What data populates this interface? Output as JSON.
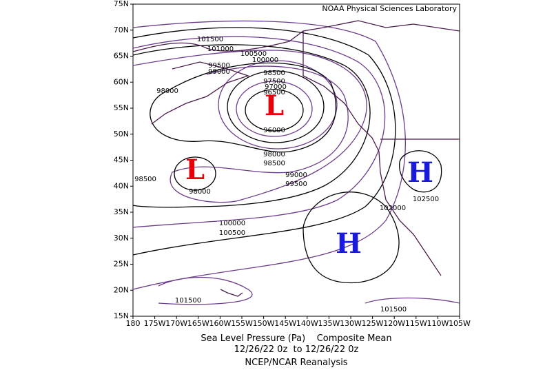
{
  "map": {
    "credit": "NOAA Physical Sciences Laboratory",
    "lat_ticks": [
      "75N",
      "70N",
      "65N",
      "60N",
      "55N",
      "50N",
      "45N",
      "40N",
      "35N",
      "30N",
      "25N",
      "20N",
      "15N"
    ],
    "lon_ticks": [
      "180",
      "175W",
      "170W",
      "165W",
      "160W",
      "155W",
      "150W",
      "145W",
      "140W",
      "135W",
      "130W",
      "125W",
      "120W",
      "115W",
      "110W",
      "105W"
    ],
    "pressure_centers": [
      "L",
      "L",
      "H",
      "H"
    ],
    "contour_labels": [
      101500,
      101000,
      100500,
      100000,
      99500,
      99000,
      98500,
      98000,
      97500,
      97000,
      96500,
      96000,
      98000,
      98500,
      99000,
      99500,
      98500,
      98000,
      100000,
      100500,
      102000,
      102500,
      101500,
      101500
    ]
  },
  "caption": {
    "line1": "Sea Level Pressure (Pa)    Composite Mean",
    "line2": "12/26/22 0z  to 12/26/22 0z",
    "line3": "NCEP/NCAR Reanalysis"
  }
}
